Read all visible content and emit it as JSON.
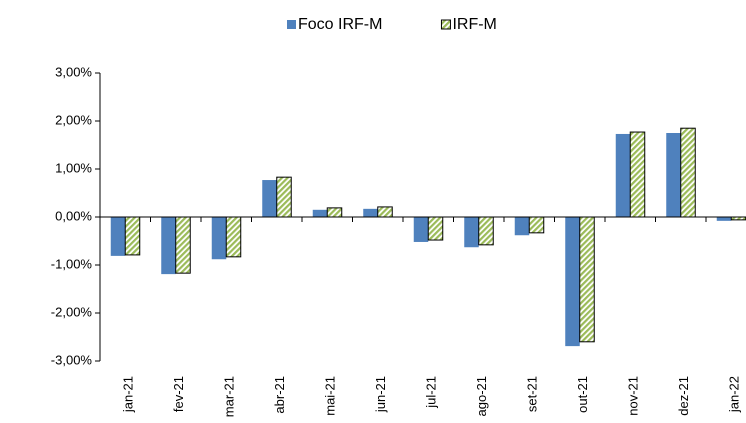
{
  "chart_data": {
    "type": "bar",
    "categories": [
      "jan-21",
      "fev-21",
      "mar-21",
      "abr-21",
      "mai-21",
      "jun-21",
      "jul-21",
      "ago-21",
      "set-21",
      "out-21",
      "nov-21",
      "dez-21",
      "jan-22"
    ],
    "series": [
      {
        "name": "Foco IRF-M",
        "color": "#4f81bd",
        "values": [
          -0.81,
          -1.19,
          -0.88,
          0.77,
          0.15,
          0.17,
          -0.52,
          -0.63,
          -0.38,
          -2.69,
          1.73,
          1.75,
          -0.08
        ]
      },
      {
        "name": "IRF-M",
        "color": "#9bbb59",
        "pattern": "hatch",
        "values": [
          -0.79,
          -1.17,
          -0.83,
          0.83,
          0.19,
          0.21,
          -0.48,
          -0.58,
          -0.33,
          -2.6,
          1.77,
          1.85,
          -0.06
        ]
      }
    ],
    "ylim": [
      -3,
      3
    ],
    "yticks": [
      {
        "value": -3,
        "label": "-3,00%"
      },
      {
        "value": -2,
        "label": "-2,00%"
      },
      {
        "value": -1,
        "label": "-1,00%"
      },
      {
        "value": 0,
        "label": "0,00%"
      },
      {
        "value": 1,
        "label": "1,00%"
      },
      {
        "value": 2,
        "label": "2,00%"
      },
      {
        "value": 3,
        "label": "3,00%"
      }
    ],
    "legend": "top"
  }
}
